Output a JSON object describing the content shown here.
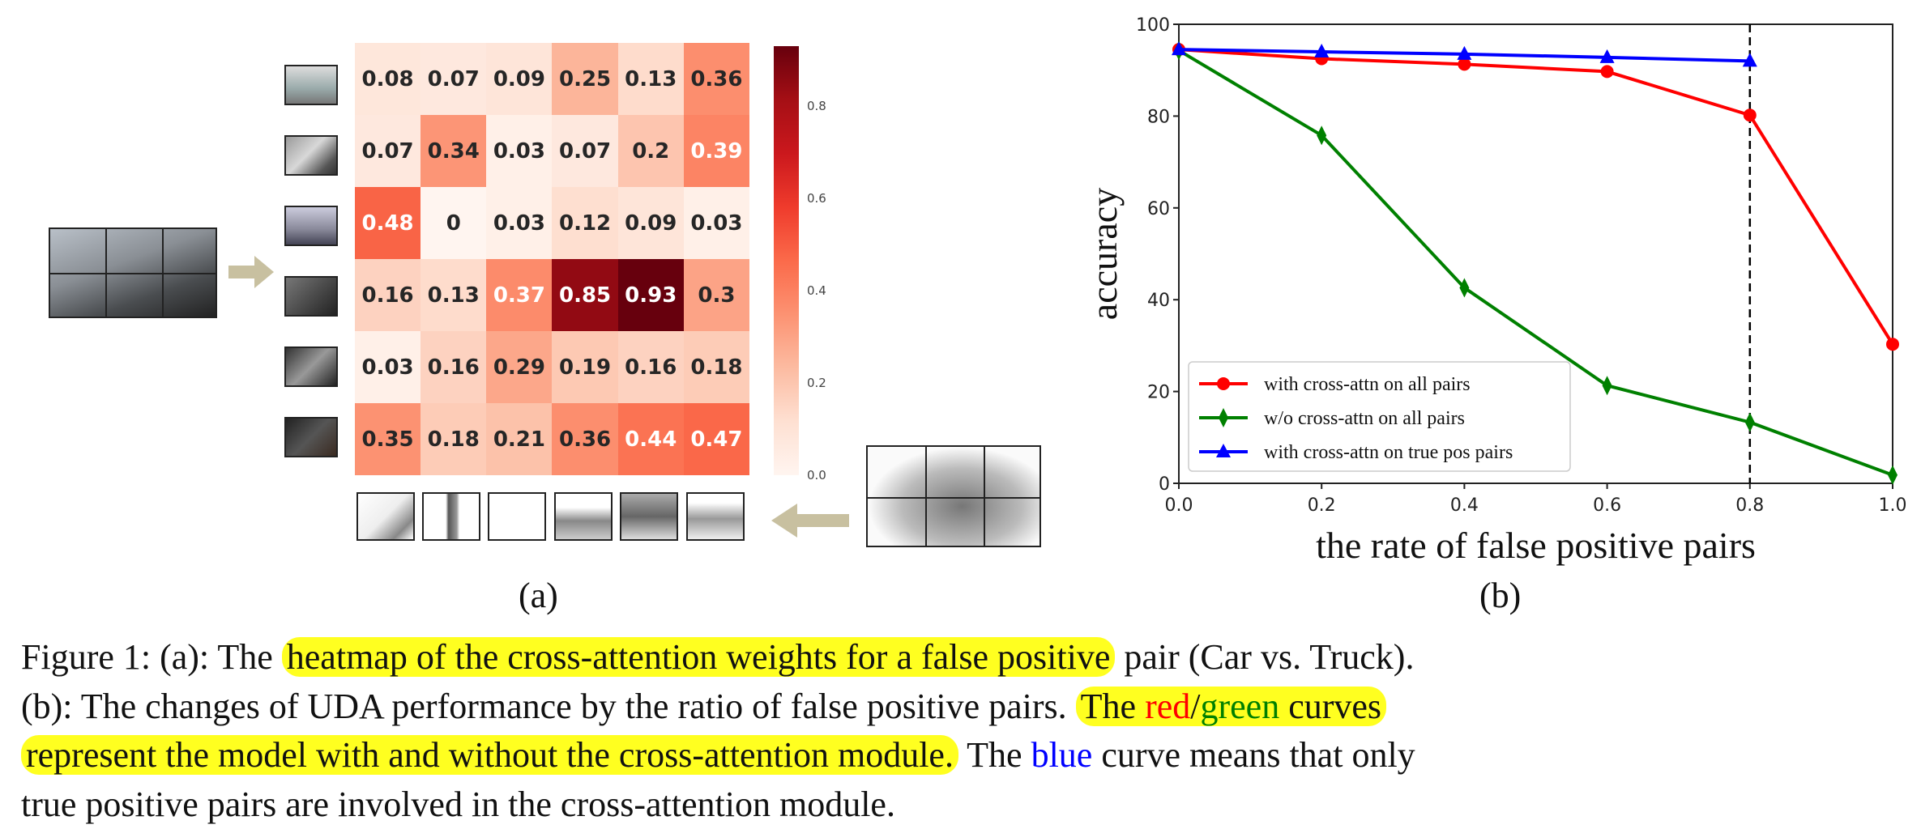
{
  "figure_a": {
    "label": "(a)",
    "heatmap": {
      "values": [
        [
          0.08,
          0.07,
          0.09,
          0.25,
          0.13,
          0.36
        ],
        [
          0.07,
          0.34,
          0.03,
          0.07,
          0.2,
          0.39
        ],
        [
          0.48,
          0,
          0.03,
          0.12,
          0.09,
          0.03
        ],
        [
          0.16,
          0.13,
          0.37,
          0.85,
          0.93,
          0.3
        ],
        [
          0.03,
          0.16,
          0.29,
          0.19,
          0.16,
          0.18
        ],
        [
          0.35,
          0.18,
          0.21,
          0.36,
          0.44,
          0.47
        ]
      ],
      "colormap": "Reds",
      "colorbar_range": [
        0.0,
        0.93
      ],
      "colorbar_ticks": [
        "0.0",
        "0.2",
        "0.4",
        "0.6",
        "0.8"
      ]
    }
  },
  "chart_data": {
    "type": "line",
    "label": "(b)",
    "xlabel": "the rate of false positive pairs",
    "ylabel": "accuracy",
    "xlim": [
      0.0,
      1.0
    ],
    "ylim": [
      0,
      100
    ],
    "xticks": [
      "0.0",
      "0.2",
      "0.4",
      "0.6",
      "0.8",
      "1.0"
    ],
    "yticks": [
      "0",
      "20",
      "40",
      "60",
      "80",
      "100"
    ],
    "grid": false,
    "legend_position": "lower-left",
    "vertical_reference_line": {
      "x": 0.8,
      "style": "dashed",
      "color": "#000000"
    },
    "series": [
      {
        "name": "with cross-attn on all pairs",
        "color": "#ff0000",
        "marker": "circle",
        "x": [
          0.0,
          0.2,
          0.4,
          0.6,
          0.8,
          1.0
        ],
        "y": [
          94.5,
          92.5,
          91.3,
          89.7,
          80.2,
          30.3
        ]
      },
      {
        "name": "w/o cross-attn on all pairs",
        "color": "#008000",
        "marker": "thin-diamond",
        "x": [
          0.0,
          0.2,
          0.4,
          0.6,
          0.8,
          1.0
        ],
        "y": [
          94.3,
          75.8,
          42.6,
          21.3,
          13.3,
          1.8
        ]
      },
      {
        "name": "with cross-attn on true pos pairs",
        "color": "#0000ff",
        "marker": "triangle",
        "x": [
          0.0,
          0.2,
          0.4,
          0.6,
          0.8
        ],
        "y": [
          94.5,
          94.0,
          93.5,
          92.8,
          92.0
        ]
      }
    ]
  },
  "caption": {
    "l1_a": "Figure 1: (a): The ",
    "l1_hl": "heatmap of the cross-attention weights for a false positive",
    "l1_b": " pair (Car vs.  Truck).",
    "l2_a": "(b):  The changes of UDA performance by the ratio of false positive pairs. ",
    "l2_hl_a": "The ",
    "l2_red": "red",
    "l2_slash": "/",
    "l2_green": "green",
    "l2_hl_b": " curves",
    "l3_hl": "represent the model with and without the cross-attention module.",
    "l3_a": " The ",
    "l3_blue": "blue",
    "l3_b": " curve means that only",
    "l4": "true positive pairs are involved in the cross-attention module.",
    "colors": {
      "red": "#ff0000",
      "green": "#008000",
      "blue": "#0000ff",
      "highlight": "#ffff20"
    }
  }
}
